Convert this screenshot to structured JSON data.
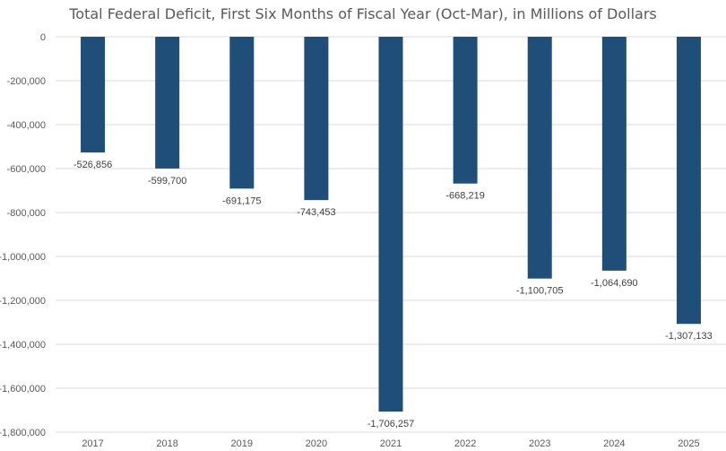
{
  "chart_data": {
    "type": "bar",
    "title": "Total Federal Deficit, First Six Months of Fiscal Year (Oct-Mar), in Millions of Dollars",
    "xlabel": "",
    "ylabel": "",
    "categories": [
      "2017",
      "2018",
      "2019",
      "2020",
      "2021",
      "2022",
      "2023",
      "2024",
      "2025"
    ],
    "values": [
      -526856,
      -599700,
      -691175,
      -743453,
      -1706257,
      -668219,
      -1100705,
      -1064690,
      -1307133
    ],
    "data_labels": [
      "-526,856",
      "-599,700",
      "-691,175",
      "-743,453",
      "-1,706,257",
      "-668,219",
      "-1,100,705",
      "-1,064,690",
      "-1,307,133"
    ],
    "ylim": [
      -1800000,
      0
    ],
    "yticks": [
      0,
      -200000,
      -400000,
      -600000,
      -800000,
      -1000000,
      -1200000,
      -1400000,
      -1600000,
      -1800000
    ],
    "ytick_labels": [
      "0",
      "-200,000",
      "-400,000",
      "-600,000",
      "-800,000",
      "-1,000,000",
      "-1,200,000",
      "-1,400,000",
      "-1,600,000",
      "-1,800,000"
    ],
    "grid": true,
    "legend": "none",
    "colors": {
      "bar": "#1F4E79",
      "grid": "#D9D9D9",
      "axis_text": "#595959",
      "title": "#595959"
    }
  }
}
